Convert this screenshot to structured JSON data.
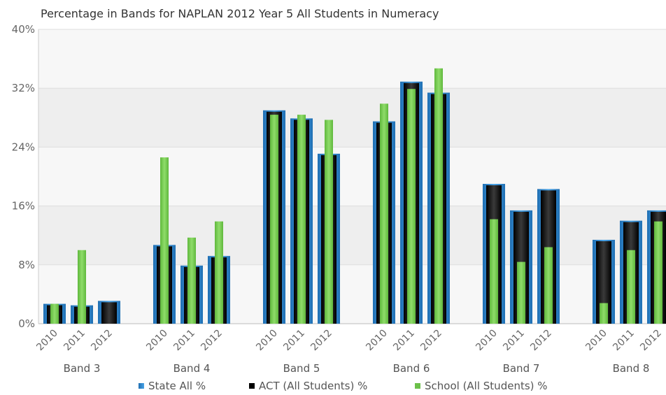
{
  "chart_data": {
    "type": "bar",
    "title": "Percentage in Bands for NAPLAN 2012 Year 5 All Students in Numeracy",
    "ylim": [
      0,
      40
    ],
    "yticks": [
      0,
      8,
      16,
      24,
      32,
      40
    ],
    "ytick_suffix": "%",
    "grid": "horizontal bands",
    "legend_position": "bottom",
    "groups": [
      "Band 3",
      "Band 4",
      "Band 5",
      "Band 6",
      "Band 7",
      "Band 8"
    ],
    "years": [
      "2010",
      "2011",
      "2012"
    ],
    "series": [
      {
        "name": "State All %",
        "color": "#2a7fc4",
        "values": [
          [
            2.7,
            2.5,
            3.1
          ],
          [
            10.7,
            7.9,
            9.2
          ],
          [
            29.0,
            27.9,
            23.1
          ],
          [
            27.5,
            32.9,
            31.4
          ],
          [
            19.0,
            15.4,
            18.3
          ],
          [
            11.4,
            14.0,
            15.4
          ]
        ]
      },
      {
        "name": "ACT (All Students) %",
        "color": "#111111",
        "values": [
          [
            2.7,
            2.5,
            3.1
          ],
          [
            10.7,
            7.9,
            9.2
          ],
          [
            29.0,
            27.9,
            23.1
          ],
          [
            27.5,
            32.9,
            31.4
          ],
          [
            19.0,
            15.4,
            18.3
          ],
          [
            11.4,
            14.0,
            15.4
          ]
        ]
      },
      {
        "name": "School  (All Students) %",
        "color": "#6cc04a",
        "values": [
          [
            2.7,
            10.0,
            null
          ],
          [
            22.6,
            11.7,
            13.9
          ],
          [
            28.4,
            28.4,
            27.7
          ],
          [
            29.9,
            31.9,
            34.7
          ],
          [
            14.2,
            8.4,
            10.4
          ],
          [
            2.8,
            10.0,
            13.9
          ]
        ]
      }
    ]
  }
}
